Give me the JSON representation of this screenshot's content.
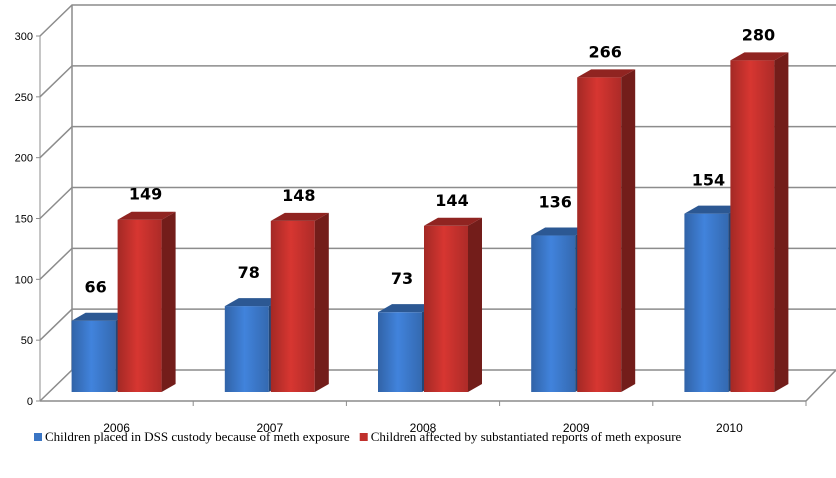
{
  "chart_data": {
    "type": "bar",
    "categories": [
      "2006",
      "2007",
      "2008",
      "2009",
      "2010"
    ],
    "series": [
      {
        "name": "Children placed in DSS custody because of meth exposure",
        "values": [
          66,
          78,
          73,
          136,
          154
        ],
        "color": "#3a75c4"
      },
      {
        "name": "Children affected by substantiated reports of meth exposure",
        "values": [
          149,
          148,
          144,
          266,
          280
        ],
        "color": "#c0302c"
      }
    ],
    "ylim": [
      0,
      300
    ],
    "yticks": [
      "0",
      "50",
      "100",
      "150",
      "200",
      "250",
      "300"
    ],
    "data_labels": [
      [
        "66",
        "78",
        "73",
        "136",
        "154"
      ],
      [
        "149",
        "148",
        "144",
        "266",
        "280"
      ]
    ],
    "grid": true,
    "legend_position": "bottom",
    "style": "3d-clustered-column"
  }
}
